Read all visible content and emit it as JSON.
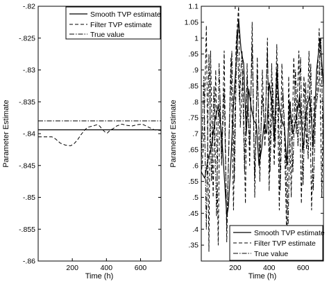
{
  "chart_data": [
    {
      "type": "line",
      "xlabel": "Time (h)",
      "ylabel": "Parameter Estimate",
      "xlim": [
        0,
        720
      ],
      "ylim": [
        -0.86,
        -0.82
      ],
      "xticks": [
        200,
        400,
        600
      ],
      "yticks": [
        -0.86,
        -0.855,
        -0.85,
        -0.845,
        -0.84,
        -0.835,
        -0.83,
        -0.825,
        -0.82
      ],
      "legend_position": "top-right",
      "grid": false,
      "series": [
        {
          "name": "Smooth TVP estimate",
          "style": "solid",
          "x": [
            0,
            720
          ],
          "y": [
            -0.8394,
            -0.8394
          ]
        },
        {
          "name": "Filter TVP estimate",
          "style": "dashed",
          "x": [
            0,
            40,
            80,
            100,
            130,
            160,
            190,
            210,
            230,
            250,
            270,
            290,
            320,
            345,
            360,
            375,
            390,
            405,
            420,
            440,
            460,
            490,
            520,
            550,
            580,
            610,
            640,
            680,
            720
          ],
          "y": [
            -0.8405,
            -0.8405,
            -0.8405,
            -0.8408,
            -0.8415,
            -0.8418,
            -0.8419,
            -0.8416,
            -0.841,
            -0.8402,
            -0.8395,
            -0.839,
            -0.8388,
            -0.8386,
            -0.8388,
            -0.8393,
            -0.8397,
            -0.8399,
            -0.8395,
            -0.8392,
            -0.8388,
            -0.8385,
            -0.8387,
            -0.8388,
            -0.8386,
            -0.8385,
            -0.8389,
            -0.8394,
            -0.8395
          ]
        },
        {
          "name": "True value",
          "style": "dashdot",
          "x": [
            0,
            720
          ],
          "y": [
            -0.838,
            -0.838
          ]
        }
      ]
    },
    {
      "type": "line",
      "xlabel": "Time (h)",
      "ylabel": "Parameter Estimate",
      "xlim": [
        0,
        720
      ],
      "ylim": [
        0.3,
        1.1
      ],
      "xticks": [
        200,
        400,
        600
      ],
      "yticks": [
        0.35,
        0.4,
        0.45,
        0.5,
        0.55,
        0.6,
        0.65,
        0.7,
        0.75,
        0.8,
        0.85,
        0.9,
        0.95,
        1,
        1.05,
        1.1
      ],
      "legend_position": "bottom-right",
      "grid": false,
      "series": [
        {
          "name": "Smooth TVP estimate",
          "style": "solid",
          "x": [
            0,
            20,
            40,
            60,
            80,
            100,
            120,
            150,
            160,
            175,
            190,
            205,
            220,
            235,
            250,
            265,
            280,
            295,
            310,
            325,
            340,
            355,
            370,
            385,
            400,
            415,
            430,
            445,
            460,
            475,
            490,
            505,
            520,
            540,
            560,
            580,
            600,
            620,
            640,
            660,
            680,
            700,
            720
          ],
          "y": [
            0.58,
            0.56,
            0.62,
            0.66,
            0.74,
            0.79,
            0.7,
            0.44,
            0.47,
            0.62,
            0.79,
            0.92,
            1.06,
            0.96,
            0.92,
            0.7,
            0.84,
            0.78,
            0.74,
            0.73,
            0.6,
            0.65,
            0.73,
            0.7,
            0.86,
            0.8,
            0.68,
            0.9,
            0.78,
            0.74,
            0.72,
            0.6,
            0.8,
            0.7,
            0.75,
            0.82,
            0.65,
            0.78,
            0.82,
            0.66,
            0.9,
            1.0,
            0.85
          ]
        },
        {
          "name": "Filter TVP estimate",
          "style": "dashed",
          "x": [
            0,
            15,
            30,
            45,
            55,
            70,
            85,
            100,
            110,
            120,
            135,
            150,
            160,
            175,
            190,
            205,
            220,
            230,
            245,
            260,
            270,
            285,
            300,
            315,
            330,
            345,
            360,
            375,
            390,
            400,
            415,
            430,
            445,
            460,
            475,
            490,
            505,
            515,
            530,
            545,
            560,
            575,
            590,
            605,
            620,
            635,
            650,
            665,
            680,
            695,
            710,
            720
          ],
          "y": [
            0.57,
            0.68,
            1.04,
            0.33,
            0.96,
            0.5,
            0.9,
            0.35,
            0.82,
            0.6,
            0.96,
            0.36,
            0.6,
            0.94,
            0.46,
            0.98,
            1.1,
            0.72,
            0.9,
            0.48,
            0.92,
            0.6,
            1.05,
            0.5,
            0.94,
            0.55,
            0.9,
            0.66,
            1.0,
            0.52,
            0.92,
            0.6,
            0.98,
            0.46,
            0.92,
            0.7,
            0.33,
            0.88,
            0.5,
            0.94,
            0.7,
            0.96,
            0.48,
            0.88,
            0.65,
            0.96,
            0.46,
            0.82,
            0.8,
            1.03,
            0.5,
            0.8
          ]
        },
        {
          "name": "True value",
          "style": "dashdot",
          "x": [
            0,
            15,
            30,
            45,
            60,
            75,
            90,
            105,
            120,
            135,
            150,
            165,
            180,
            195,
            210,
            225,
            240,
            255,
            270,
            285,
            300,
            315,
            330,
            345,
            360,
            375,
            390,
            405,
            420,
            435,
            450,
            465,
            480,
            495,
            510,
            525,
            540,
            555,
            570,
            585,
            600,
            615,
            630,
            645,
            660,
            675,
            690,
            705,
            720
          ],
          "y": [
            0.6,
            0.88,
            0.4,
            0.95,
            0.55,
            0.85,
            0.44,
            0.92,
            0.62,
            0.84,
            0.4,
            0.72,
            0.96,
            0.55,
            1.02,
            0.8,
            0.96,
            0.58,
            0.88,
            0.66,
            0.98,
            0.56,
            0.9,
            0.62,
            0.82,
            0.7,
            0.96,
            0.58,
            0.86,
            0.66,
            0.92,
            0.52,
            0.84,
            0.68,
            0.36,
            0.8,
            0.58,
            0.9,
            0.66,
            0.94,
            0.54,
            0.86,
            0.62,
            0.92,
            0.52,
            0.78,
            0.84,
            1.0,
            0.62
          ]
        }
      ]
    }
  ]
}
